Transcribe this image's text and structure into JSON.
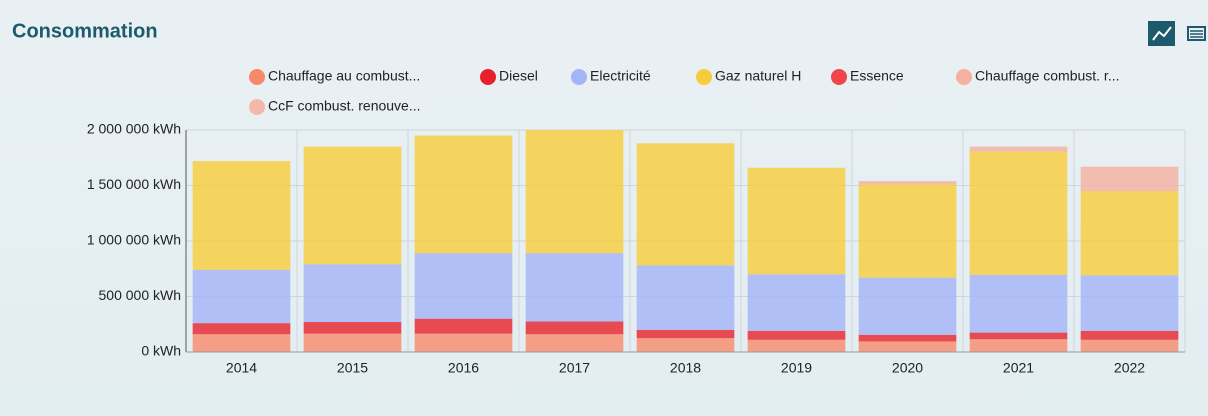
{
  "chart_data": {
    "type": "stacked_bar",
    "title": "Consommation",
    "categories": [
      "2014",
      "2015",
      "2016",
      "2017",
      "2018",
      "2019",
      "2020",
      "2021",
      "2022"
    ],
    "series": [
      {
        "name": "Chauffage au combust...",
        "color": "#f7896b",
        "values": [
          160000,
          165000,
          165000,
          160000,
          125000,
          110000,
          95000,
          115000,
          110000
        ]
      },
      {
        "name": "Diesel",
        "color": "#e8202a",
        "values": [
          100000,
          105000,
          135000,
          115000,
          75000,
          80000,
          60000,
          60000,
          80000
        ]
      },
      {
        "name": "Electricité",
        "color": "#a3b4f7",
        "values": [
          480000,
          520000,
          590000,
          615000,
          580000,
          510000,
          515000,
          520000,
          500000
        ]
      },
      {
        "name": "Gaz naturel H",
        "color": "#f7cc3a",
        "values": [
          980000,
          1060000,
          1060000,
          1110000,
          1100000,
          960000,
          840000,
          1110000,
          760000
        ]
      },
      {
        "name": "Essence",
        "color": "#f0454a",
        "values": [
          0,
          0,
          0,
          0,
          0,
          0,
          0,
          0,
          0
        ]
      },
      {
        "name": "Chauffage combust. r...",
        "color": "#f5b0a0",
        "values": [
          0,
          0,
          0,
          0,
          0,
          0,
          30000,
          45000,
          220000
        ]
      },
      {
        "name": "CcF combust. renouve...",
        "color": "#f8aa99",
        "values": [
          0,
          0,
          0,
          0,
          0,
          0,
          0,
          0,
          0
        ]
      }
    ],
    "ylim": [
      0,
      2000000
    ],
    "yticks": [
      {
        "value": 0,
        "label": "0 kWh"
      },
      {
        "value": 500000,
        "label": "500 000 kWh"
      },
      {
        "value": 1000000,
        "label": "1 000 000 kWh"
      },
      {
        "value": 1500000,
        "label": "1 500 000 kWh"
      },
      {
        "value": 2000000,
        "label": "2 000 000 kWh"
      }
    ],
    "grid": true
  }
}
